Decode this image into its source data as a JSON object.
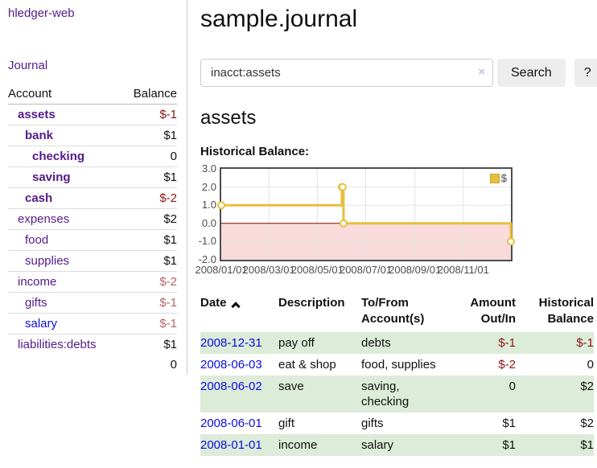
{
  "colors": {
    "link_unvisited": "#0c0ce0",
    "link_visited": "#551a8b",
    "negative_strong": "#8e1515",
    "negative_soft": "#b4636e",
    "row_highlight_green": "#dcecd8"
  },
  "brand": {
    "title": "hledger-web"
  },
  "nav": {
    "journal": "Journal"
  },
  "sidebar": {
    "header": {
      "account": "Account",
      "balance": "Balance"
    },
    "rows": [
      {
        "name": "assets",
        "depth": 0,
        "balance": "$-1",
        "bold": true,
        "neg": "neg-strong"
      },
      {
        "name": "bank",
        "depth": 1,
        "balance": "$1",
        "bold": true
      },
      {
        "name": "checking",
        "depth": 2,
        "balance": "0",
        "bold": true
      },
      {
        "name": "saving",
        "depth": 2,
        "balance": "$1",
        "bold": true
      },
      {
        "name": "cash",
        "depth": 1,
        "balance": "$-2",
        "bold": true,
        "neg": "neg-strong"
      },
      {
        "name": "expenses",
        "depth": 0,
        "balance": "$2"
      },
      {
        "name": "food",
        "depth": 1,
        "balance": "$1"
      },
      {
        "name": "supplies",
        "depth": 1,
        "balance": "$1"
      },
      {
        "name": "income",
        "depth": 0,
        "balance": "$-2",
        "neg": "neg-soft"
      },
      {
        "name": "gifts",
        "depth": 1,
        "balance": "$-1",
        "neg": "neg-soft"
      },
      {
        "name": "salary",
        "depth": 1,
        "balance": "$-1",
        "neg": "neg-soft",
        "blue": true
      },
      {
        "name": "liabilities:debts",
        "depth": 0,
        "balance": "$1"
      }
    ],
    "total": "0"
  },
  "main": {
    "title": "sample.journal",
    "search": {
      "value": "inacct:assets",
      "clear": "×",
      "button": "Search",
      "help": "?"
    },
    "account_title": "assets",
    "chart_heading": "Historical Balance:"
  },
  "chart_data": {
    "type": "line",
    "step": true,
    "title": "Historical Balance",
    "series": [
      {
        "name": "$",
        "color": "#e7bf3d",
        "points": [
          [
            "2008-01-01",
            1
          ],
          [
            "2008-06-01",
            2
          ],
          [
            "2008-06-02",
            2
          ],
          [
            "2008-06-03",
            0
          ],
          [
            "2008-12-31",
            -1
          ]
        ]
      }
    ],
    "x_range": [
      "2008-01-01",
      "2008-12-31"
    ],
    "x_ticks": [
      {
        "date": "2008-01-01",
        "label": "2008/01/01"
      },
      {
        "date": "2008-03-01",
        "label": "2008/03/01"
      },
      {
        "date": "2008-05-01",
        "label": "2008/05/01"
      },
      {
        "date": "2008-07-01",
        "label": "2008/07/01"
      },
      {
        "date": "2008-09-01",
        "label": "2008/09/01"
      },
      {
        "date": "2008-11-01",
        "label": "2008/11/01"
      }
    ],
    "y_ticks": [
      {
        "value": 3,
        "label": "3.0"
      },
      {
        "value": 2,
        "label": "2.0"
      },
      {
        "value": 1,
        "label": "1.0"
      },
      {
        "value": 0,
        "label": "0.0"
      },
      {
        "value": -1,
        "label": "-1.0"
      },
      {
        "value": -2,
        "label": "-2.0"
      }
    ],
    "ylim": [
      -2,
      3
    ],
    "grid": true,
    "legend_position": "top-right",
    "negative_fill": "#f9dbdb",
    "zero_line_color": "#8b0000",
    "grid_color": "#e3e3e3"
  },
  "register": {
    "headers": {
      "date": "Date",
      "description": "Description",
      "tofrom": "To/From Account(s)",
      "amount": "Amount Out/In",
      "balance": "Historical Balance"
    },
    "rows": [
      {
        "date": "2008-12-31",
        "description": "pay off",
        "accounts": "debts",
        "amount": "$-1",
        "balance": "$-1",
        "amount_neg": true,
        "balance_neg": true,
        "highlight": true
      },
      {
        "date": "2008-06-03",
        "description": "eat & shop",
        "accounts": "food, supplies",
        "amount": "$-2",
        "balance": "0",
        "amount_neg": true,
        "balance_neg": false,
        "highlight": false
      },
      {
        "date": "2008-06-02",
        "description": "save",
        "accounts": "saving, checking",
        "amount": "0",
        "balance": "$2",
        "amount_neg": false,
        "balance_neg": false,
        "highlight": true
      },
      {
        "date": "2008-06-01",
        "description": "gift",
        "accounts": "gifts",
        "amount": "$1",
        "balance": "$2",
        "amount_neg": false,
        "balance_neg": false,
        "highlight": false
      },
      {
        "date": "2008-01-01",
        "description": "income",
        "accounts": "salary",
        "amount": "$1",
        "balance": "$1",
        "amount_neg": false,
        "balance_neg": false,
        "highlight": true
      }
    ]
  }
}
